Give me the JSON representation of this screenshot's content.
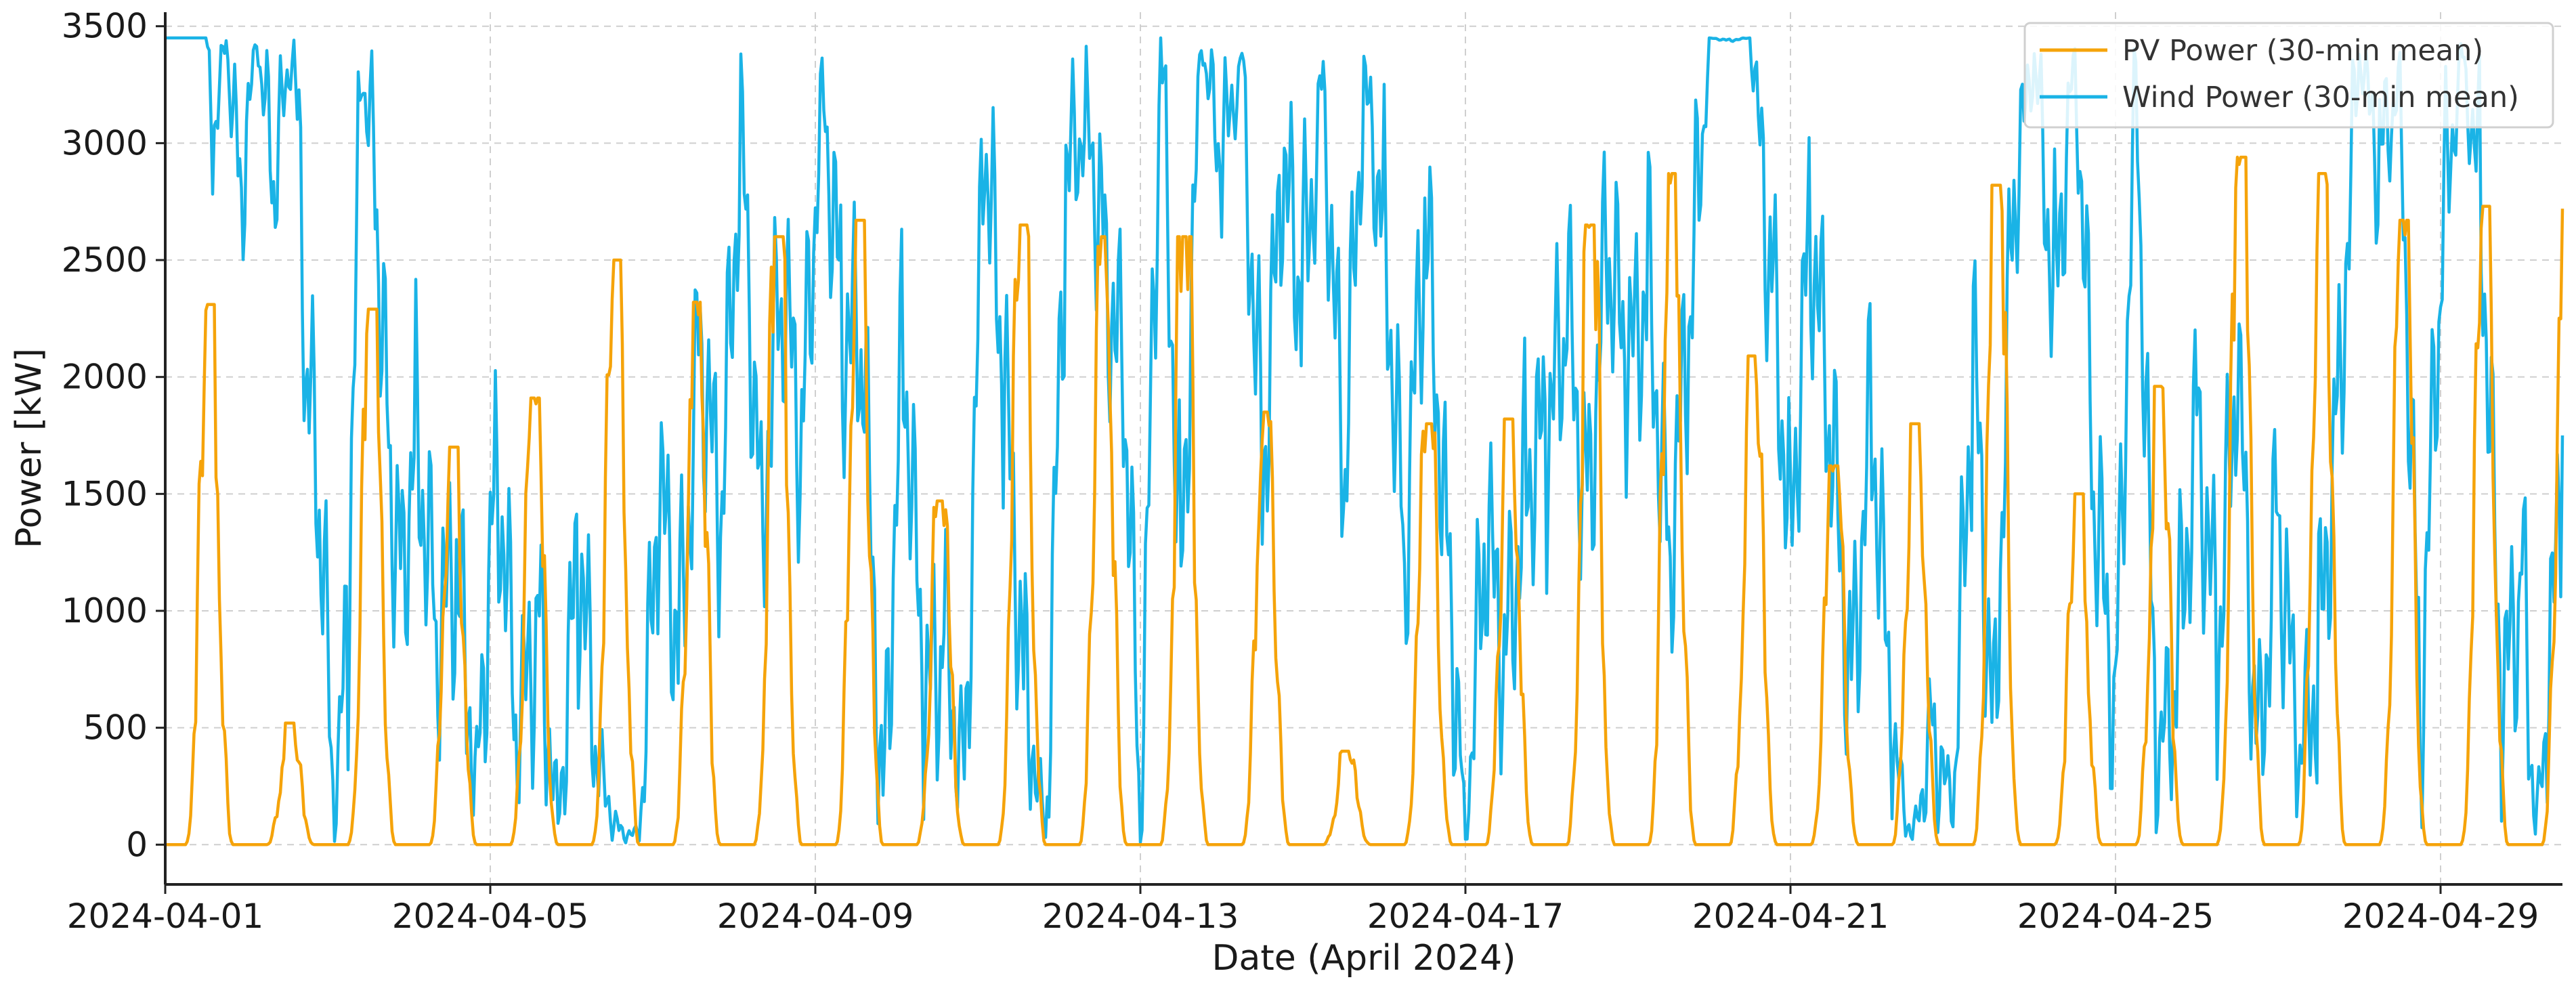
{
  "chart_data": {
    "type": "line",
    "title": "",
    "xlabel": "Date (April 2024)",
    "ylabel": "Power [kW]",
    "xlim": [
      "2024-04-01T00:00",
      "2024-04-30T12:00"
    ],
    "ylim": [
      -170,
      3560
    ],
    "grid": true,
    "legend_position": "top-right",
    "x_ticks": [
      "2024-04-01",
      "2024-04-05",
      "2024-04-09",
      "2024-04-13",
      "2024-04-17",
      "2024-04-21",
      "2024-04-25",
      "2024-04-29"
    ],
    "y_ticks": [
      0,
      500,
      1000,
      1500,
      2000,
      2500,
      3000,
      3500
    ],
    "sampling": "30-min mean",
    "series": [
      {
        "name": "PV Power (30-min mean)",
        "color": "#f5a30a",
        "daily_peak_kw": [
          2310,
          520,
          2290,
          1700,
          1910,
          2500,
          2320,
          2600,
          2670,
          1470,
          2650,
          2600,
          2600,
          1850,
          400,
          1800,
          1820,
          2650,
          2870,
          2090,
          1620,
          1800,
          2820,
          1500,
          1960,
          2940,
          2870,
          2670,
          2730,
          2720
        ]
      },
      {
        "name": "Wind Power (30-min mean)",
        "color": "#1ab3e6",
        "points": [
          [
            "2024-04-01T00:00",
            3450
          ],
          [
            "2024-04-01T12:00",
            3450
          ],
          [
            "2024-04-01T14:00",
            3020
          ],
          [
            "2024-04-01T18:00",
            3440
          ],
          [
            "2024-04-01T22:00",
            2790
          ],
          [
            "2024-04-02T03:00",
            3430
          ],
          [
            "2024-04-02T08:00",
            2850
          ],
          [
            "2024-04-02T14:00",
            3430
          ],
          [
            "2024-04-02T18:00",
            1980
          ],
          [
            "2024-04-02T22:00",
            1350
          ],
          [
            "2024-04-03T02:00",
            60
          ],
          [
            "2024-04-03T06:00",
            950
          ],
          [
            "2024-04-03T10:00",
            3310
          ],
          [
            "2024-04-03T14:00",
            2870
          ],
          [
            "2024-04-03T18:00",
            1650
          ],
          [
            "2024-04-03T22:00",
            1150
          ],
          [
            "2024-04-04T02:00",
            1850
          ],
          [
            "2024-04-04T08:00",
            900
          ],
          [
            "2024-04-04T14:00",
            1150
          ],
          [
            "2024-04-04T20:00",
            300
          ],
          [
            "2024-04-05T02:00",
            1700
          ],
          [
            "2024-04-05T08:00",
            400
          ],
          [
            "2024-04-05T14:00",
            1000
          ],
          [
            "2024-04-05T20:00",
            120
          ],
          [
            "2024-04-06T02:00",
            1210
          ],
          [
            "2024-04-06T08:00",
            300
          ],
          [
            "2024-04-06T14:00",
            60
          ],
          [
            "2024-04-06T20:00",
            40
          ],
          [
            "2024-04-07T02:00",
            1460
          ],
          [
            "2024-04-07T08:00",
            900
          ],
          [
            "2024-04-07T14:00",
            2200
          ],
          [
            "2024-04-07T20:00",
            1300
          ],
          [
            "2024-04-08T02:00",
            3100
          ],
          [
            "2024-04-08T08:00",
            1400
          ],
          [
            "2024-04-08T14:00",
            2400
          ],
          [
            "2024-04-08T20:00",
            1700
          ],
          [
            "2024-04-09T02:00",
            3300
          ],
          [
            "2024-04-09T08:00",
            2200
          ],
          [
            "2024-04-09T14:00",
            2100
          ],
          [
            "2024-04-09T20:00",
            200
          ],
          [
            "2024-04-10T02:00",
            2220
          ],
          [
            "2024-04-10T08:00",
            550
          ],
          [
            "2024-04-10T14:00",
            900
          ],
          [
            "2024-04-10T20:00",
            300
          ],
          [
            "2024-04-11T02:00",
            3010
          ],
          [
            "2024-04-11T08:00",
            1900
          ],
          [
            "2024-04-11T14:00",
            700
          ],
          [
            "2024-04-11T20:00",
            30
          ],
          [
            "2024-04-12T02:00",
            2800
          ],
          [
            "2024-04-12T08:00",
            3150
          ],
          [
            "2024-04-12T14:00",
            2500
          ],
          [
            "2024-04-12T20:00",
            1800
          ],
          [
            "2024-04-13T00:00",
            20
          ],
          [
            "2024-04-13T06:00",
            3450
          ],
          [
            "2024-04-13T12:00",
            1200
          ],
          [
            "2024-04-13T18:00",
            3420
          ],
          [
            "2024-04-14T00:00",
            2900
          ],
          [
            "2024-04-14T06:00",
            3380
          ],
          [
            "2024-04-14T12:00",
            1600
          ],
          [
            "2024-04-14T18:00",
            2800
          ],
          [
            "2024-04-15T00:00",
            2400
          ],
          [
            "2024-04-15T06:00",
            3300
          ],
          [
            "2024-04-15T12:00",
            1500
          ],
          [
            "2024-04-15T18:00",
            3250
          ],
          [
            "2024-04-16T00:00",
            2700
          ],
          [
            "2024-04-16T06:00",
            1200
          ],
          [
            "2024-04-16T12:00",
            2650
          ],
          [
            "2024-04-16T18:00",
            1500
          ],
          [
            "2024-04-17T00:00",
            30
          ],
          [
            "2024-04-17T06:00",
            1300
          ],
          [
            "2024-04-17T12:00",
            800
          ],
          [
            "2024-04-17T18:00",
            1640
          ],
          [
            "2024-04-18T00:00",
            1700
          ],
          [
            "2024-04-18T06:00",
            2270
          ],
          [
            "2024-04-18T12:00",
            1460
          ],
          [
            "2024-04-18T18:00",
            2570
          ],
          [
            "2024-04-19T00:00",
            1960
          ],
          [
            "2024-04-19T06:00",
            2480
          ],
          [
            "2024-04-19T12:00",
            1220
          ],
          [
            "2024-04-19T18:00",
            2150
          ],
          [
            "2024-04-20T00:00",
            3450
          ],
          [
            "2024-04-20T06:00",
            3440
          ],
          [
            "2024-04-20T12:00",
            3450
          ],
          [
            "2024-04-20T18:00",
            2500
          ],
          [
            "2024-04-21T00:00",
            1400
          ],
          [
            "2024-04-21T06:00",
            2660
          ],
          [
            "2024-04-21T12:00",
            1700
          ],
          [
            "2024-04-21T18:00",
            700
          ],
          [
            "2024-04-22T00:00",
            1900
          ],
          [
            "2024-04-22T06:00",
            400
          ],
          [
            "2024-04-22T12:00",
            20
          ],
          [
            "2024-04-22T18:00",
            500
          ],
          [
            "2024-04-23T00:00",
            120
          ],
          [
            "2024-04-23T06:00",
            2100
          ],
          [
            "2024-04-23T12:00",
            500
          ],
          [
            "2024-04-23T18:00",
            2800
          ],
          [
            "2024-04-24T00:00",
            3350
          ],
          [
            "2024-04-24T06:00",
            2400
          ],
          [
            "2024-04-24T12:00",
            3400
          ],
          [
            "2024-04-24T18:00",
            1400
          ],
          [
            "2024-04-25T00:00",
            600
          ],
          [
            "2024-04-25T06:00",
            3360
          ],
          [
            "2024-04-25T12:00",
            300
          ],
          [
            "2024-04-25T18:00",
            700
          ],
          [
            "2024-04-26T00:00",
            1900
          ],
          [
            "2024-04-26T06:00",
            800
          ],
          [
            "2024-04-26T12:00",
            2000
          ],
          [
            "2024-04-26T18:00",
            400
          ],
          [
            "2024-04-27T00:00",
            1450
          ],
          [
            "2024-04-27T06:00",
            300
          ],
          [
            "2024-04-27T12:00",
            800
          ],
          [
            "2024-04-27T18:00",
            2000
          ],
          [
            "2024-04-28T00:00",
            3380
          ],
          [
            "2024-04-28T06:00",
            2900
          ],
          [
            "2024-04-28T12:00",
            3300
          ],
          [
            "2024-04-28T18:00",
            500
          ],
          [
            "2024-04-29T00:00",
            2460
          ],
          [
            "2024-04-29T06:00",
            3420
          ],
          [
            "2024-04-29T12:00",
            2800
          ],
          [
            "2024-04-29T18:00",
            500
          ],
          [
            "2024-04-30T00:00",
            1200
          ],
          [
            "2024-04-30T04:00",
            50
          ],
          [
            "2024-04-30T08:00",
            600
          ],
          [
            "2024-04-30T12:00",
            1750
          ]
        ]
      }
    ]
  }
}
